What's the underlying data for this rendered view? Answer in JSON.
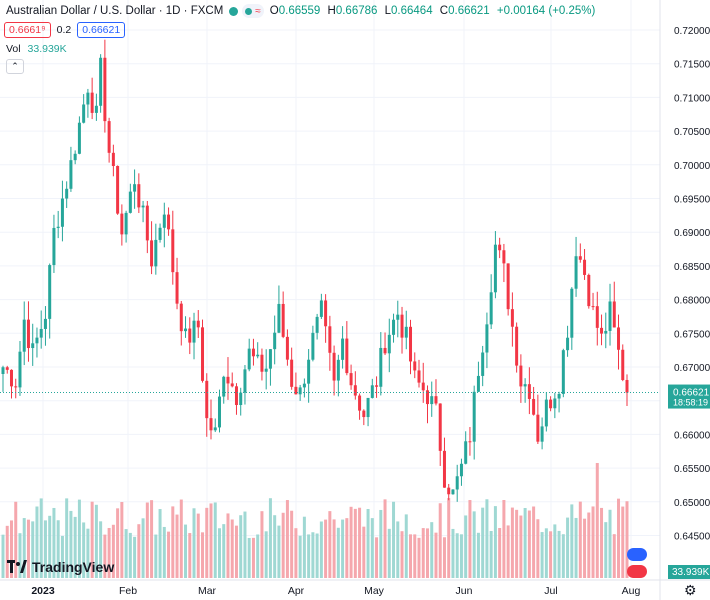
{
  "header": {
    "title": "Australian Dollar / U.S. Dollar · 1D · FXCM",
    "open_label": "O",
    "open": "0.66559",
    "high_label": "H",
    "high": "0.66786",
    "low_label": "L",
    "low": "0.66464",
    "close_label": "C",
    "close": "0.66621",
    "change": "+0.00164 (+0.25%)"
  },
  "trade": {
    "sell": "0.6661⁹",
    "spread": "0.2",
    "buy": "0.66621"
  },
  "volume": {
    "label": "Vol",
    "value": "33.939K",
    "axis_badge": "33.939K"
  },
  "price_badge": {
    "price": "0.66621",
    "countdown": "18:58:19"
  },
  "branding": {
    "logo_text": "TradingView"
  },
  "icons": {
    "settings": "gear-icon",
    "collapse": "chevron-up-icon",
    "logo": "tradingview-logo-icon"
  },
  "colors": {
    "up": "#26a69a",
    "down": "#f23645",
    "vol_up": "#9fd8d3",
    "vol_down": "#f5a7ad",
    "last": "#26a69a"
  },
  "chart_data": {
    "type": "candlestick",
    "symbol": "AUDUSD",
    "interval": "1D",
    "y_axis": {
      "side": "right",
      "ylim": [
        0.6405,
        0.7225
      ],
      "ticks": [
        "0.72000",
        "0.71500",
        "0.71000",
        "0.70500",
        "0.70000",
        "0.69500",
        "0.69000",
        "0.68500",
        "0.68000",
        "0.67500",
        "0.67000",
        "0.66500",
        "0.66000",
        "0.65500",
        "0.65000",
        "0.64500"
      ],
      "tick_values": [
        0.72,
        0.715,
        0.71,
        0.705,
        0.7,
        0.695,
        0.69,
        0.685,
        0.68,
        0.675,
        0.67,
        0.665,
        0.66,
        0.655,
        0.65,
        0.645
      ]
    },
    "x_axis": {
      "labels": [
        "2023",
        "Feb",
        "Mar",
        "Apr",
        "May",
        "Jun",
        "Jul",
        "Aug"
      ],
      "label_positions": [
        10,
        32,
        52,
        74,
        96,
        117,
        139,
        161
      ]
    },
    "last_price": 0.66621,
    "anchors": [
      [
        0,
        0.67
      ],
      [
        3,
        0.668
      ],
      [
        5,
        0.677
      ],
      [
        7,
        0.672
      ],
      [
        10,
        0.678
      ],
      [
        12,
        0.69
      ],
      [
        16,
        0.7
      ],
      [
        20,
        0.712
      ],
      [
        22,
        0.707
      ],
      [
        23,
        0.714
      ],
      [
        25,
        0.702
      ],
      [
        28,
        0.69
      ],
      [
        31,
        0.698
      ],
      [
        35,
        0.686
      ],
      [
        38,
        0.694
      ],
      [
        41,
        0.68
      ],
      [
        43,
        0.674
      ],
      [
        46,
        0.676
      ],
      [
        48,
        0.662
      ],
      [
        50,
        0.66
      ],
      [
        52,
        0.67
      ],
      [
        55,
        0.666
      ],
      [
        58,
        0.672
      ],
      [
        60,
        0.67
      ],
      [
        62,
        0.67
      ],
      [
        65,
        0.678
      ],
      [
        68,
        0.668
      ],
      [
        70,
        0.666
      ],
      [
        72,
        0.672
      ],
      [
        75,
        0.678
      ],
      [
        78,
        0.667
      ],
      [
        80,
        0.674
      ],
      [
        82,
        0.668
      ],
      [
        85,
        0.663
      ],
      [
        88,
        0.668
      ],
      [
        90,
        0.674
      ],
      [
        93,
        0.678
      ],
      [
        95,
        0.674
      ],
      [
        97,
        0.668
      ],
      [
        100,
        0.666
      ],
      [
        102,
        0.663
      ],
      [
        104,
        0.654
      ],
      [
        106,
        0.651
      ],
      [
        108,
        0.655
      ],
      [
        110,
        0.66
      ],
      [
        112,
        0.67
      ],
      [
        114,
        0.678
      ],
      [
        116,
        0.688
      ],
      [
        118,
        0.684
      ],
      [
        120,
        0.676
      ],
      [
        122,
        0.668
      ],
      [
        124,
        0.667
      ],
      [
        126,
        0.66
      ],
      [
        128,
        0.664
      ],
      [
        131,
        0.668
      ],
      [
        133,
        0.676
      ],
      [
        135,
        0.688
      ],
      [
        137,
        0.684
      ],
      [
        139,
        0.678
      ],
      [
        141,
        0.674
      ],
      [
        143,
        0.678
      ],
      [
        145,
        0.672
      ],
      [
        147,
        0.666
      ]
    ],
    "volume": {
      "base_top": 460,
      "base_bottom": 578,
      "spike_index": 140
    }
  }
}
